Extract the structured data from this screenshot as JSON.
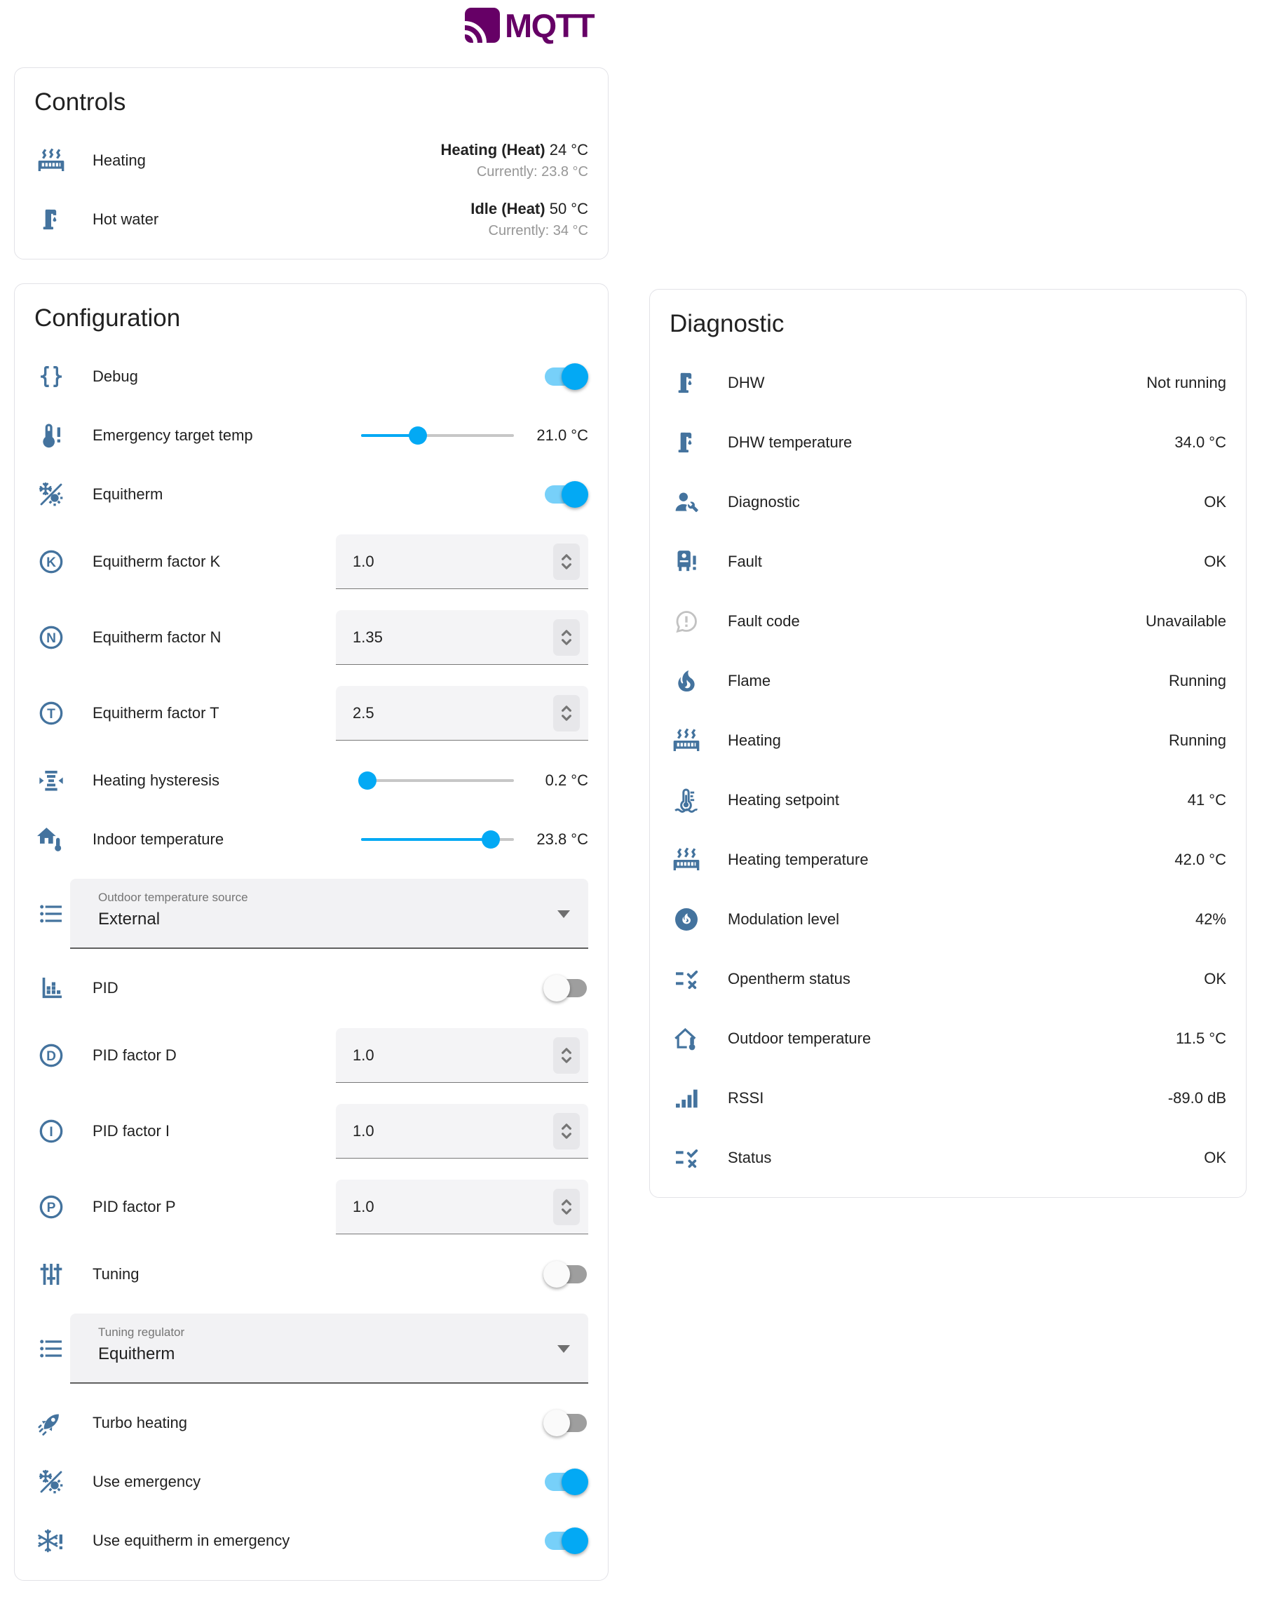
{
  "header": {
    "logo_text": "MQTT"
  },
  "colors": {
    "accent": "#03a9f4",
    "icon_blue": "#44739e",
    "logo_purple": "#660066",
    "muted_icon": "#c2c2c2"
  },
  "controls": {
    "title": "Controls",
    "rows": [
      {
        "name": "heating",
        "icon": "radiator-icon",
        "label": "Heating",
        "state_bold": "Heating (Heat)",
        "state_temp": "24 °C",
        "state_secondary": "Currently: 23.8 °C"
      },
      {
        "name": "hot-water",
        "icon": "water-pump-icon",
        "label": "Hot water",
        "state_bold": "Idle (Heat)",
        "state_temp": "50 °C",
        "state_secondary": "Currently: 34 °C"
      }
    ]
  },
  "configuration": {
    "title": "Configuration",
    "rows": [
      {
        "type": "toggle",
        "name": "debug",
        "icon": "code-braces-icon",
        "label": "Debug",
        "on": true
      },
      {
        "type": "slider",
        "name": "emergency-target-temp",
        "icon": "thermometer-alert-icon",
        "label": "Emergency target temp",
        "value": "21.0 °C",
        "percent": 37
      },
      {
        "type": "toggle",
        "name": "equitherm",
        "icon": "sun-snowflake-icon",
        "label": "Equitherm",
        "on": true
      },
      {
        "type": "number",
        "name": "equitherm-factor-k",
        "icon": "alpha-k-circle-icon",
        "label": "Equitherm factor K",
        "value": "1.0"
      },
      {
        "type": "number",
        "name": "equitherm-factor-n",
        "icon": "alpha-n-circle-icon",
        "label": "Equitherm factor N",
        "value": "1.35"
      },
      {
        "type": "number",
        "name": "equitherm-factor-t",
        "icon": "alpha-t-circle-icon",
        "label": "Equitherm factor T",
        "value": "2.5"
      },
      {
        "type": "slider",
        "name": "heating-hysteresis",
        "icon": "hysteresis-icon",
        "label": "Heating hysteresis",
        "value": "0.2 °C",
        "percent": 4
      },
      {
        "type": "slider",
        "name": "indoor-temperature",
        "icon": "home-thermometer-icon",
        "label": "Indoor temperature",
        "value": "23.8 °C",
        "percent": 85
      },
      {
        "type": "select",
        "name": "outdoor-temperature-source",
        "icon": "format-list-bulleted-icon",
        "label": "Outdoor temperature source",
        "value": "External"
      },
      {
        "type": "toggle",
        "name": "pid",
        "icon": "chart-histogram-icon",
        "label": "PID",
        "on": false
      },
      {
        "type": "number",
        "name": "pid-factor-d",
        "icon": "alpha-d-circle-icon",
        "label": "PID factor D",
        "value": "1.0"
      },
      {
        "type": "number",
        "name": "pid-factor-i",
        "icon": "alpha-i-circle-icon",
        "label": "PID factor I",
        "value": "1.0"
      },
      {
        "type": "number",
        "name": "pid-factor-p",
        "icon": "alpha-p-circle-icon",
        "label": "PID factor P",
        "value": "1.0"
      },
      {
        "type": "toggle",
        "name": "tuning",
        "icon": "tune-vertical-icon",
        "label": "Tuning",
        "on": false
      },
      {
        "type": "select",
        "name": "tuning-regulator",
        "icon": "format-list-bulleted-icon",
        "label": "Tuning regulator",
        "value": "Equitherm"
      },
      {
        "type": "toggle",
        "name": "turbo-heating",
        "icon": "rocket-icon",
        "label": "Turbo heating",
        "on": false
      },
      {
        "type": "toggle",
        "name": "use-emergency",
        "icon": "sun-snowflake-icon",
        "label": "Use emergency",
        "on": true
      },
      {
        "type": "toggle",
        "name": "use-equitherm-in-emergency",
        "icon": "snowflake-alert-icon",
        "label": "Use equitherm in emergency",
        "on": true
      }
    ]
  },
  "diagnostic": {
    "title": "Diagnostic",
    "rows": [
      {
        "name": "dhw",
        "icon": "water-pump-icon",
        "label": "DHW",
        "value": "Not running"
      },
      {
        "name": "dhw-temperature",
        "icon": "water-pump-icon",
        "label": "DHW temperature",
        "value": "34.0 °C"
      },
      {
        "name": "diagnostic",
        "icon": "account-wrench-icon",
        "label": "Diagnostic",
        "value": "OK"
      },
      {
        "name": "fault",
        "icon": "water-boiler-alert-icon",
        "label": "Fault",
        "value": "OK"
      },
      {
        "name": "fault-code",
        "icon": "chat-alert-icon",
        "label": "Fault code",
        "value": "Unavailable",
        "muted": true
      },
      {
        "name": "flame",
        "icon": "fire-icon",
        "label": "Flame",
        "value": "Running"
      },
      {
        "name": "heating",
        "icon": "radiator-icon",
        "label": "Heating",
        "value": "Running"
      },
      {
        "name": "heating-setpoint",
        "icon": "thermometer-water-icon",
        "label": "Heating setpoint",
        "value": "41 °C"
      },
      {
        "name": "heating-temperature",
        "icon": "radiator-icon",
        "label": "Heating temperature",
        "value": "42.0 °C"
      },
      {
        "name": "modulation-level",
        "icon": "fire-circle-icon",
        "label": "Modulation level",
        "value": "42%"
      },
      {
        "name": "opentherm-status",
        "icon": "list-status-icon",
        "label": "Opentherm status",
        "value": "OK"
      },
      {
        "name": "outdoor-temperature",
        "icon": "home-thermometer-outline-icon",
        "label": "Outdoor temperature",
        "value": "11.5 °C"
      },
      {
        "name": "rssi",
        "icon": "signal-icon",
        "label": "RSSI",
        "value": "-89.0 dB"
      },
      {
        "name": "status",
        "icon": "list-status-icon",
        "label": "Status",
        "value": "OK"
      }
    ]
  }
}
